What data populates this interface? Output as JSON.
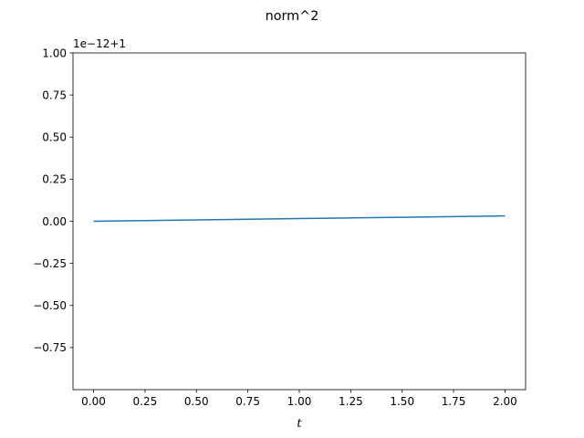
{
  "chart_data": {
    "type": "line",
    "title": "norm^2",
    "xlabel": "t",
    "ylabel": "",
    "y_offset_text": "1e−12+1",
    "xlim": [
      -0.1,
      2.1
    ],
    "ylim": [
      -1.0,
      1.0
    ],
    "x_ticks": [
      0.0,
      0.25,
      0.5,
      0.75,
      1.0,
      1.25,
      1.5,
      1.75,
      2.0
    ],
    "x_tick_labels": [
      "0.00",
      "0.25",
      "0.50",
      "0.75",
      "1.00",
      "1.25",
      "1.50",
      "1.75",
      "2.00"
    ],
    "y_ticks": [
      -0.75,
      -0.5,
      -0.25,
      0.0,
      0.25,
      0.5,
      0.75,
      1.0
    ],
    "y_tick_labels": [
      "−0.75",
      "−0.50",
      "−0.25",
      "0.00",
      "0.25",
      "0.50",
      "0.75",
      "1.00"
    ],
    "grid": false,
    "legend": "none",
    "series": [
      {
        "color": "#1f77b4",
        "x": [
          0.0,
          0.25,
          0.5,
          0.75,
          1.0,
          1.25,
          1.5,
          1.75,
          2.0
        ],
        "y": [
          0.0,
          0.004,
          0.008,
          0.012,
          0.016,
          0.02,
          0.024,
          0.028,
          0.032
        ]
      }
    ]
  }
}
